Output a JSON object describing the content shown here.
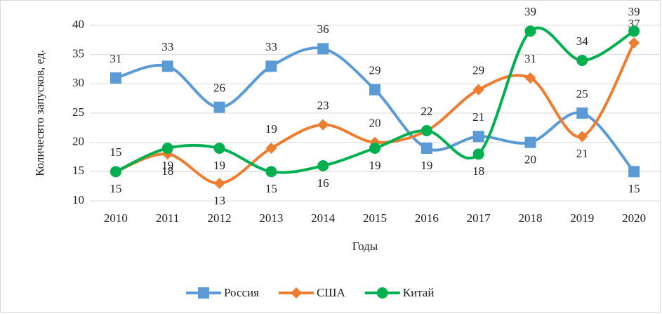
{
  "chart_data": {
    "type": "line",
    "y_label": "Количесвто запусков, ед.",
    "x_label": "Годы",
    "categories": [
      "2010",
      "2011",
      "2012",
      "2013",
      "2014",
      "2015",
      "2016",
      "2017",
      "2018",
      "2019",
      "2020"
    ],
    "series": [
      {
        "name": "Россия",
        "color": "#5b9bd5",
        "marker": "square",
        "values": [
          31,
          33,
          26,
          33,
          36,
          29,
          19,
          21,
          20,
          25,
          15
        ]
      },
      {
        "name": "США",
        "color": "#ed7d31",
        "marker": "diamond",
        "values": [
          15,
          18,
          13,
          19,
          23,
          20,
          22,
          29,
          31,
          21,
          37
        ]
      },
      {
        "name": "Китай",
        "color": "#00b050",
        "marker": "circle",
        "values": [
          15,
          19,
          19,
          15,
          16,
          19,
          22,
          18,
          39,
          34,
          39
        ]
      }
    ],
    "ylim": [
      10,
      40
    ],
    "yticks": [
      10,
      15,
      20,
      25,
      30,
      35,
      40
    ],
    "grid": true,
    "smooth": true,
    "legend": "bottom"
  }
}
